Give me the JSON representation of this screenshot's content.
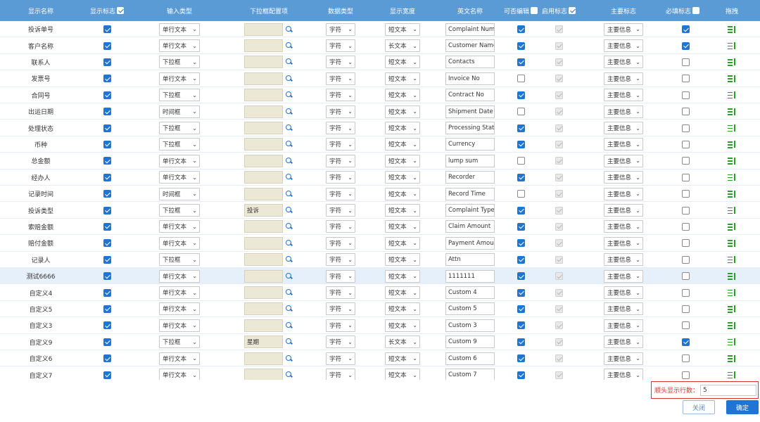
{
  "header": {
    "cols": {
      "name": "显示名称",
      "show": "显示标志",
      "input_type": "输入类型",
      "dropdown": "下拉框配置项",
      "data_type": "数据类型",
      "width": "显示宽度",
      "en_name": "英文名称",
      "editable": "可否编辑",
      "enabled": "启用标志",
      "main": "主要标志",
      "required": "必填标志",
      "drag": "拖拽"
    },
    "show_all": true,
    "editable_all": false,
    "enabled_all": true,
    "required_all": false
  },
  "rows": [
    {
      "name": "投诉单号",
      "show": true,
      "input_type": "单行文本",
      "dropdown": "",
      "data_type": "字符",
      "width": "短文本",
      "en_name": "Complaint Numb",
      "editable": true,
      "enabled": true,
      "main": "主要信息",
      "required": true
    },
    {
      "name": "客户名称",
      "show": true,
      "input_type": "单行文本",
      "dropdown": "",
      "data_type": "字符",
      "width": "长文本",
      "en_name": "Customer Name",
      "editable": true,
      "enabled": true,
      "main": "主要信息",
      "required": true
    },
    {
      "name": "联系人",
      "show": true,
      "input_type": "下拉框",
      "dropdown": "",
      "data_type": "字符",
      "width": "短文本",
      "en_name": "Contacts",
      "editable": true,
      "enabled": true,
      "main": "主要信息",
      "required": false
    },
    {
      "name": "发票号",
      "show": true,
      "input_type": "单行文本",
      "dropdown": "",
      "data_type": "字符",
      "width": "短文本",
      "en_name": "Invoice No",
      "editable": false,
      "enabled": true,
      "main": "主要信息",
      "required": false
    },
    {
      "name": "合同号",
      "show": true,
      "input_type": "下拉框",
      "dropdown": "",
      "data_type": "字符",
      "width": "短文本",
      "en_name": "Contract No",
      "editable": true,
      "enabled": true,
      "main": "主要信息",
      "required": false
    },
    {
      "name": "出运日期",
      "show": true,
      "input_type": "时间框",
      "dropdown": "",
      "data_type": "字符",
      "width": "短文本",
      "en_name": "Shipment Date",
      "editable": false,
      "enabled": true,
      "main": "主要信息",
      "required": false
    },
    {
      "name": "处理状态",
      "show": true,
      "input_type": "下拉框",
      "dropdown": "",
      "data_type": "字符",
      "width": "短文本",
      "en_name": "Processing Stat",
      "editable": true,
      "enabled": true,
      "main": "主要信息",
      "required": false
    },
    {
      "name": "币种",
      "show": true,
      "input_type": "下拉框",
      "dropdown": "",
      "data_type": "字符",
      "width": "短文本",
      "en_name": "Currency",
      "editable": true,
      "enabled": true,
      "main": "主要信息",
      "required": false
    },
    {
      "name": "总金额",
      "show": true,
      "input_type": "单行文本",
      "dropdown": "",
      "data_type": "字符",
      "width": "短文本",
      "en_name": "lump sum",
      "editable": false,
      "enabled": true,
      "main": "主要信息",
      "required": false
    },
    {
      "name": "经办人",
      "show": true,
      "input_type": "单行文本",
      "dropdown": "",
      "data_type": "字符",
      "width": "短文本",
      "en_name": "Recorder",
      "editable": true,
      "enabled": true,
      "main": "主要信息",
      "required": false
    },
    {
      "name": "记录时间",
      "show": true,
      "input_type": "时间框",
      "dropdown": "",
      "data_type": "字符",
      "width": "短文本",
      "en_name": "Record Time",
      "editable": false,
      "enabled": true,
      "main": "主要信息",
      "required": false
    },
    {
      "name": "投诉类型",
      "show": true,
      "input_type": "下拉框",
      "dropdown": "投诉",
      "data_type": "字符",
      "width": "短文本",
      "en_name": "Complaint Type",
      "editable": true,
      "enabled": true,
      "main": "主要信息",
      "required": false
    },
    {
      "name": "索赔金额",
      "show": true,
      "input_type": "单行文本",
      "dropdown": "",
      "data_type": "字符",
      "width": "短文本",
      "en_name": "Claim Amount",
      "editable": true,
      "enabled": true,
      "main": "主要信息",
      "required": false
    },
    {
      "name": "赔付金额",
      "show": true,
      "input_type": "单行文本",
      "dropdown": "",
      "data_type": "字符",
      "width": "短文本",
      "en_name": "Payment Amour",
      "editable": true,
      "enabled": true,
      "main": "主要信息",
      "required": false
    },
    {
      "name": "记录人",
      "show": true,
      "input_type": "下拉框",
      "dropdown": "",
      "data_type": "字符",
      "width": "短文本",
      "en_name": "Attn",
      "editable": true,
      "enabled": true,
      "main": "主要信息",
      "required": false
    },
    {
      "name": "测试6666",
      "show": true,
      "input_type": "单行文本",
      "dropdown": "",
      "data_type": "字符",
      "width": "短文本",
      "en_name": "1111111",
      "editable": true,
      "enabled": true,
      "main": "主要信息",
      "required": false,
      "highlight": true
    },
    {
      "name": "自定义4",
      "show": true,
      "input_type": "单行文本",
      "dropdown": "",
      "data_type": "字符",
      "width": "短文本",
      "en_name": "Custom 4",
      "editable": true,
      "enabled": true,
      "main": "主要信息",
      "required": false
    },
    {
      "name": "自定义5",
      "show": true,
      "input_type": "单行文本",
      "dropdown": "",
      "data_type": "字符",
      "width": "短文本",
      "en_name": "Custom 5",
      "editable": true,
      "enabled": true,
      "main": "主要信息",
      "required": false
    },
    {
      "name": "自定义3",
      "show": true,
      "input_type": "单行文本",
      "dropdown": "",
      "data_type": "字符",
      "width": "短文本",
      "en_name": "Custom 3",
      "editable": true,
      "enabled": true,
      "main": "主要信息",
      "required": false
    },
    {
      "name": "自定义9",
      "show": true,
      "input_type": "下拉框",
      "dropdown": "星期",
      "data_type": "字符",
      "width": "长文本",
      "en_name": "Custom 9",
      "editable": true,
      "enabled": true,
      "main": "主要信息",
      "required": true
    },
    {
      "name": "自定义6",
      "show": true,
      "input_type": "单行文本",
      "dropdown": "",
      "data_type": "字符",
      "width": "短文本",
      "en_name": "Custom 6",
      "editable": true,
      "enabled": true,
      "main": "主要信息",
      "required": false
    },
    {
      "name": "自定义7",
      "show": true,
      "input_type": "单行文本",
      "dropdown": "",
      "data_type": "字符",
      "width": "短文本",
      "en_name": "Custom 7",
      "editable": true,
      "enabled": true,
      "main": "主要信息",
      "required": false
    }
  ],
  "footer": {
    "header_rows_label": "顺头显示行数：",
    "header_rows_value": "5",
    "close_label": "关闭",
    "ok_label": "确定"
  },
  "colors": {
    "header_bg": "#5b9bd5",
    "accent": "#1f75d1",
    "drag_icon": "#2a9d2a",
    "alert_border": "#d9332e"
  }
}
